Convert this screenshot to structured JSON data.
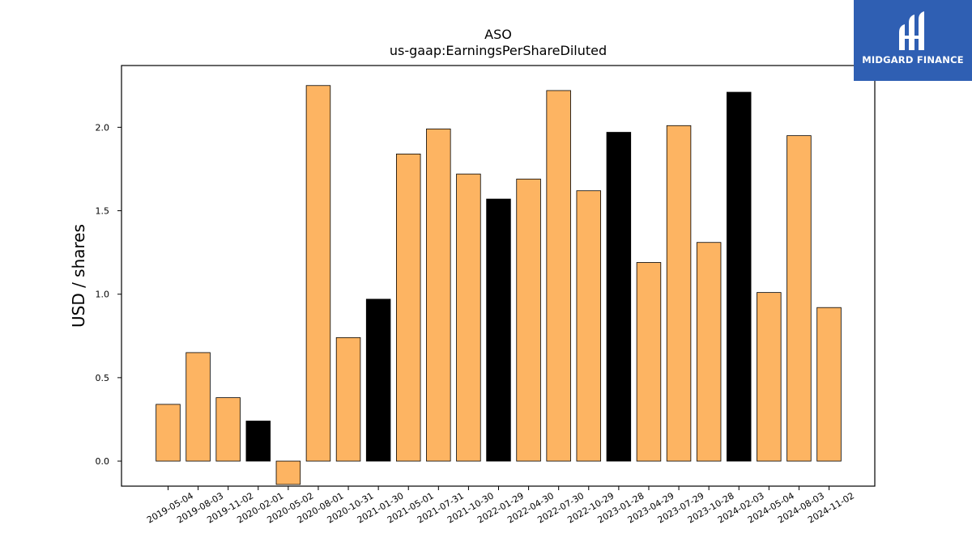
{
  "chart_data": {
    "type": "bar",
    "title": "ASO",
    "subtitle": "us-gaap:EarningsPerShareDiluted",
    "xlabel": "",
    "ylabel": "USD / shares",
    "ylim": [
      -0.15,
      2.37
    ],
    "yticks": [
      "0.0",
      "0.5",
      "1.0",
      "1.5",
      "2.0"
    ],
    "grid": false,
    "categories": [
      "2019-05-04",
      "2019-08-03",
      "2019-11-02",
      "2020-02-01",
      "2020-05-02",
      "2020-08-01",
      "2020-10-31",
      "2021-01-30",
      "2021-05-01",
      "2021-07-31",
      "2021-10-30",
      "2022-01-29",
      "2022-04-30",
      "2022-07-30",
      "2022-10-29",
      "2023-01-28",
      "2023-04-29",
      "2023-07-29",
      "2023-10-28",
      "2024-02-03",
      "2024-05-04",
      "2024-08-03",
      "2024-11-02"
    ],
    "values": [
      0.34,
      0.65,
      0.38,
      0.24,
      -0.14,
      2.25,
      0.74,
      0.97,
      1.84,
      1.99,
      1.72,
      1.57,
      1.69,
      2.22,
      1.62,
      1.97,
      1.19,
      2.01,
      1.31,
      2.21,
      1.01,
      1.95,
      0.92
    ],
    "highlight": [
      false,
      false,
      false,
      true,
      false,
      false,
      false,
      true,
      false,
      false,
      false,
      true,
      false,
      false,
      false,
      true,
      false,
      false,
      false,
      true,
      false,
      false,
      false
    ],
    "colors": {
      "bar": "#fdb462",
      "highlight": "#000000",
      "edge": "#000000"
    }
  },
  "branding": {
    "name": "MIDGARD FINANCE",
    "background": "#2f5fb3"
  }
}
